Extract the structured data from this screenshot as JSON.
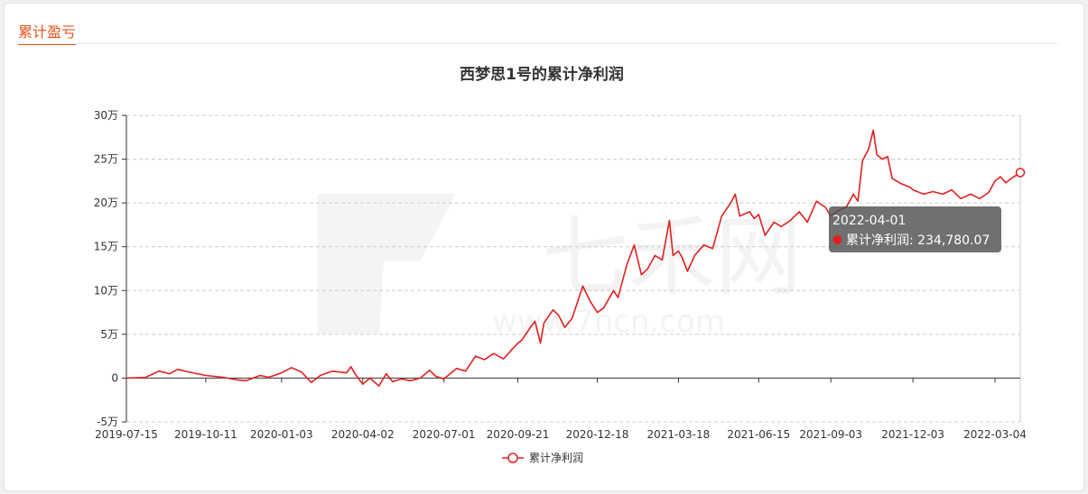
{
  "section": {
    "title": "累计盈亏"
  },
  "chart_data": {
    "type": "line",
    "title": "西梦思1号的累计净利润",
    "xlabel": "",
    "ylabel": "",
    "x_ticks": [
      "2019-07-15",
      "2019-10-11",
      "2020-01-03",
      "2020-04-02",
      "2020-07-01",
      "2020-09-21",
      "2020-12-18",
      "2021-03-18",
      "2021-06-15",
      "2021-09-03",
      "2021-12-03",
      "2022-03-04"
    ],
    "y_ticks": [
      "-5万",
      "0",
      "5万",
      "10万",
      "15万",
      "20万",
      "25万",
      "30万"
    ],
    "ylim": [
      -50000,
      300000
    ],
    "xlim": [
      "2019-07-15",
      "2022-04-01"
    ],
    "grid": true,
    "legend_position": "bottom",
    "colors": {
      "line": "#e02020",
      "grid": "#cccccc",
      "axis": "#333333"
    },
    "series": [
      {
        "name": "累计净利润",
        "points": [
          [
            "2019-07-15",
            0
          ],
          [
            "2019-08-05",
            800
          ],
          [
            "2019-08-20",
            8000
          ],
          [
            "2019-09-01",
            5000
          ],
          [
            "2019-09-10",
            10000
          ],
          [
            "2019-09-22",
            7000
          ],
          [
            "2019-10-11",
            3000
          ],
          [
            "2019-10-30",
            1000
          ],
          [
            "2019-11-15",
            -2000
          ],
          [
            "2019-11-25",
            -3000
          ],
          [
            "2019-12-10",
            3000
          ],
          [
            "2019-12-20",
            1000
          ],
          [
            "2020-01-03",
            6000
          ],
          [
            "2020-01-14",
            12000
          ],
          [
            "2020-01-25",
            7000
          ],
          [
            "2020-02-05",
            -5000
          ],
          [
            "2020-02-15",
            3000
          ],
          [
            "2020-02-28",
            8000
          ],
          [
            "2020-03-15",
            6000
          ],
          [
            "2020-03-20",
            13000
          ],
          [
            "2020-03-25",
            4000
          ],
          [
            "2020-04-02",
            -7000
          ],
          [
            "2020-04-10",
            0
          ],
          [
            "2020-04-20",
            -9000
          ],
          [
            "2020-04-28",
            5000
          ],
          [
            "2020-05-05",
            -4000
          ],
          [
            "2020-05-15",
            -1000
          ],
          [
            "2020-05-25",
            -3000
          ],
          [
            "2020-06-05",
            0
          ],
          [
            "2020-06-15",
            9000
          ],
          [
            "2020-06-22",
            2000
          ],
          [
            "2020-07-01",
            -1000
          ],
          [
            "2020-07-15",
            11000
          ],
          [
            "2020-07-25",
            8000
          ],
          [
            "2020-08-05",
            25000
          ],
          [
            "2020-08-15",
            21000
          ],
          [
            "2020-08-25",
            28000
          ],
          [
            "2020-09-05",
            22000
          ],
          [
            "2020-09-12",
            30000
          ],
          [
            "2020-09-21",
            40000
          ],
          [
            "2020-09-25",
            43000
          ],
          [
            "2020-10-03",
            55000
          ],
          [
            "2020-10-10",
            65000
          ],
          [
            "2020-10-16",
            40000
          ],
          [
            "2020-10-20",
            63000
          ],
          [
            "2020-10-30",
            78000
          ],
          [
            "2020-11-05",
            72000
          ],
          [
            "2020-11-12",
            58000
          ],
          [
            "2020-11-20",
            68000
          ],
          [
            "2020-12-02",
            105000
          ],
          [
            "2020-12-10",
            88000
          ],
          [
            "2020-12-18",
            75000
          ],
          [
            "2020-12-25",
            80000
          ],
          [
            "2021-01-05",
            100000
          ],
          [
            "2021-01-10",
            92000
          ],
          [
            "2021-01-20",
            130000
          ],
          [
            "2021-01-28",
            152000
          ],
          [
            "2021-02-05",
            118000
          ],
          [
            "2021-02-12",
            125000
          ],
          [
            "2021-02-20",
            140000
          ],
          [
            "2021-02-28",
            135000
          ],
          [
            "2021-03-08",
            180000
          ],
          [
            "2021-03-12",
            140000
          ],
          [
            "2021-03-18",
            145000
          ],
          [
            "2021-03-22",
            138000
          ],
          [
            "2021-03-28",
            122000
          ],
          [
            "2021-04-05",
            140000
          ],
          [
            "2021-04-15",
            152000
          ],
          [
            "2021-04-25",
            148000
          ],
          [
            "2021-05-05",
            185000
          ],
          [
            "2021-05-15",
            200000
          ],
          [
            "2021-05-20",
            210000
          ],
          [
            "2021-05-25",
            185000
          ],
          [
            "2021-06-05",
            190000
          ],
          [
            "2021-06-10",
            182000
          ],
          [
            "2021-06-15",
            187000
          ],
          [
            "2021-06-22",
            163000
          ],
          [
            "2021-07-02",
            178000
          ],
          [
            "2021-07-10",
            173000
          ],
          [
            "2021-07-20",
            180000
          ],
          [
            "2021-07-30",
            190000
          ],
          [
            "2021-08-08",
            178000
          ],
          [
            "2021-08-18",
            202000
          ],
          [
            "2021-08-28",
            195000
          ],
          [
            "2021-09-03",
            185000
          ],
          [
            "2021-09-12",
            192000
          ],
          [
            "2021-09-20",
            195000
          ],
          [
            "2021-09-28",
            210000
          ],
          [
            "2021-10-03",
            202000
          ],
          [
            "2021-10-08",
            248000
          ],
          [
            "2021-10-15",
            262000
          ],
          [
            "2021-10-20",
            283000
          ],
          [
            "2021-10-24",
            255000
          ],
          [
            "2021-10-30",
            250000
          ],
          [
            "2021-11-05",
            253000
          ],
          [
            "2021-11-10",
            228000
          ],
          [
            "2021-11-20",
            222000
          ],
          [
            "2021-11-30",
            218000
          ],
          [
            "2021-12-03",
            215000
          ],
          [
            "2021-12-15",
            210000
          ],
          [
            "2021-12-25",
            213000
          ],
          [
            "2022-01-05",
            210000
          ],
          [
            "2022-01-15",
            215000
          ],
          [
            "2022-01-25",
            205000
          ],
          [
            "2022-02-05",
            210000
          ],
          [
            "2022-02-15",
            205000
          ],
          [
            "2022-02-25",
            212000
          ],
          [
            "2022-03-04",
            225000
          ],
          [
            "2022-03-10",
            230000
          ],
          [
            "2022-03-16",
            223000
          ],
          [
            "2022-03-22",
            228000
          ],
          [
            "2022-04-01",
            234780
          ]
        ]
      }
    ],
    "tooltip": {
      "date": "2022-04-01",
      "series_name": "累计净利润",
      "value_text": "234,780.07"
    }
  },
  "watermark": {
    "brand": "七禾网",
    "url": "www.7hcn.com"
  }
}
